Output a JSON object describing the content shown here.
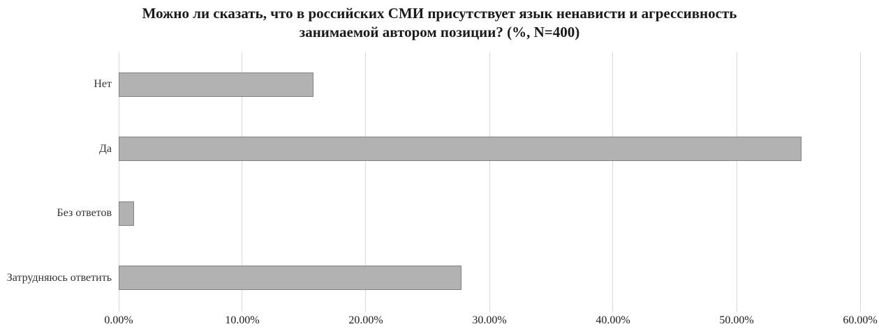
{
  "chart": {
    "title_line1": "Можно ли сказать, что в российских СМИ присутствует язык ненависти и агрессивность",
    "title_line2": "занимаемой автором позиции? (%, N=400)"
  },
  "chart_data": {
    "type": "bar",
    "orientation": "horizontal",
    "title": "Можно ли сказать, что в российских СМИ присутствует язык ненависти и агрессивность занимаемой автором позиции? (%, N=400)",
    "categories": [
      "Нет",
      "Да",
      "Без ответов",
      "Затрудняюсь ответить"
    ],
    "values": [
      15.75,
      55.25,
      1.25,
      27.75
    ],
    "xlabel": "",
    "ylabel": "",
    "xlim": [
      0,
      60
    ],
    "x_tick_values": [
      0,
      10,
      20,
      30,
      40,
      50,
      60
    ],
    "x_tick_labels": [
      "0.00%",
      "10.00%",
      "20.00%",
      "30.00%",
      "40.00%",
      "50.00%",
      "60.00%"
    ],
    "grid": "vertical-only",
    "legend": "none",
    "colors": {
      "bar_fill": "#b2b2b2",
      "bar_border": "#808080",
      "gridline": "#d9d9d9",
      "title_text": "#1a1a1a",
      "label_text": "#333333",
      "background": "#ffffff"
    }
  }
}
